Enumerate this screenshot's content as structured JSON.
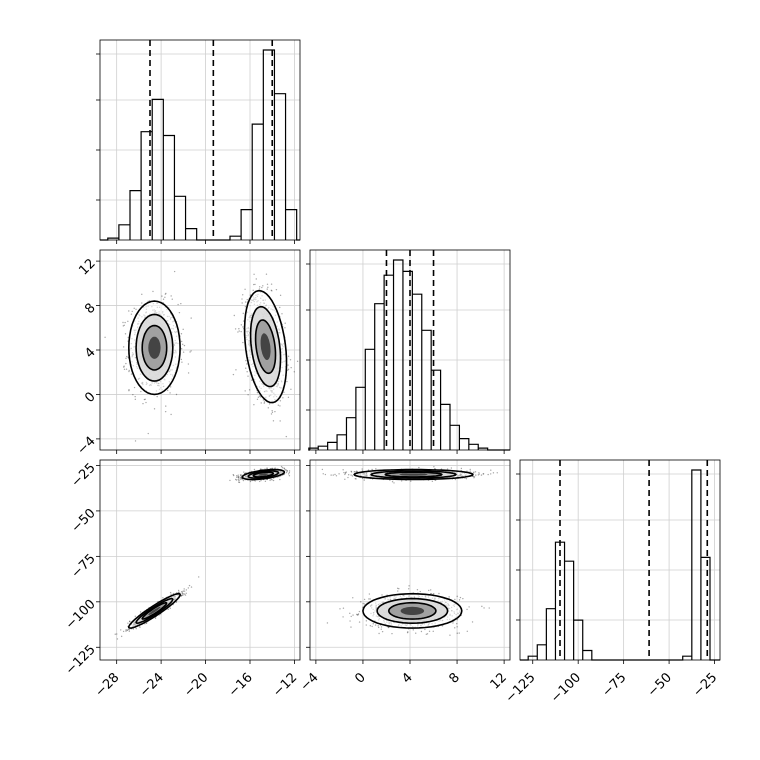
{
  "chart_data": [
    {
      "type": "histogram",
      "panel": "marginal-x",
      "xlim": [
        -29.5,
        -11.5
      ],
      "xticks": [
        -28,
        -24,
        -20,
        -16,
        -12
      ],
      "bins": [
        [
          -28.3,
          0.01
        ],
        [
          -27.3,
          0.08
        ],
        [
          -26.3,
          0.26
        ],
        [
          -25.3,
          0.57
        ],
        [
          -24.3,
          0.74
        ],
        [
          -23.3,
          0.55
        ],
        [
          -22.3,
          0.23
        ],
        [
          -21.3,
          0.06
        ],
        [
          -20.3,
          0.0
        ],
        [
          -19.3,
          0.0
        ],
        [
          -18.3,
          0.0
        ],
        [
          -17.3,
          0.02
        ],
        [
          -16.3,
          0.16
        ],
        [
          -15.3,
          0.61
        ],
        [
          -14.3,
          1.0
        ],
        [
          -13.3,
          0.77
        ],
        [
          -12.3,
          0.16
        ]
      ],
      "quantiles": [
        -25.0,
        -19.3,
        -14.0
      ]
    },
    {
      "type": "histogram",
      "panel": "marginal-y",
      "xlim": [
        -4.5,
        12.5
      ],
      "xticks": [
        -4,
        0,
        4,
        8,
        12
      ],
      "bins": [
        [
          -4.2,
          0.01
        ],
        [
          -3.4,
          0.02
        ],
        [
          -2.6,
          0.04
        ],
        [
          -1.8,
          0.08
        ],
        [
          -1.0,
          0.17
        ],
        [
          -0.2,
          0.33
        ],
        [
          0.6,
          0.53
        ],
        [
          1.4,
          0.77
        ],
        [
          2.2,
          0.92
        ],
        [
          3.0,
          1.0
        ],
        [
          3.8,
          0.94
        ],
        [
          4.6,
          0.82
        ],
        [
          5.4,
          0.63
        ],
        [
          6.2,
          0.42
        ],
        [
          7.0,
          0.24
        ],
        [
          7.8,
          0.13
        ],
        [
          8.6,
          0.06
        ],
        [
          9.4,
          0.03
        ],
        [
          10.2,
          0.01
        ]
      ],
      "quantiles": [
        2.0,
        4.0,
        6.0
      ]
    },
    {
      "type": "histogram",
      "panel": "marginal-z",
      "xlim": [
        -132,
        -22
      ],
      "xticks": [
        -125,
        -100,
        -75,
        -50,
        -25
      ],
      "bins": [
        [
          -125,
          0.02
        ],
        [
          -120,
          0.08
        ],
        [
          -115,
          0.27
        ],
        [
          -110,
          0.62
        ],
        [
          -105,
          0.52
        ],
        [
          -100,
          0.21
        ],
        [
          -95,
          0.05
        ],
        [
          -90,
          0.0
        ],
        [
          -85,
          0.0
        ],
        [
          -80,
          0.0
        ],
        [
          -75,
          0.0
        ],
        [
          -70,
          0.0
        ],
        [
          -65,
          0.0
        ],
        [
          -60,
          0.0
        ],
        [
          -55,
          0.0
        ],
        [
          -50,
          0.0
        ],
        [
          -45,
          0.0
        ],
        [
          -40,
          0.02
        ],
        [
          -35,
          1.0
        ],
        [
          -30,
          0.54
        ]
      ],
      "quantiles": [
        -110,
        -61,
        -29
      ]
    },
    {
      "type": "scatter-contour",
      "panel": "x-vs-y",
      "xlim": [
        -29.5,
        -11.5
      ],
      "ylim": [
        -5,
        13
      ],
      "xticks": [
        -28,
        -24,
        -20,
        -16,
        -12
      ],
      "yticks": [
        -4,
        0,
        4,
        8,
        12
      ],
      "clusters": [
        {
          "cx": -24.6,
          "cy": 4.2,
          "sx": 1.1,
          "sy": 2.0,
          "rho": 0.0
        },
        {
          "cx": -14.6,
          "cy": 4.3,
          "sx": 0.9,
          "sy": 2.4,
          "rho": -0.3
        }
      ]
    },
    {
      "type": "scatter-contour",
      "panel": "x-vs-z",
      "xlim": [
        -29.5,
        -11.5
      ],
      "ylim": [
        -132,
        -22
      ],
      "xticks": [
        -28,
        -24,
        -20,
        -16,
        -12
      ],
      "yticks": [
        -125,
        -100,
        -75,
        -50,
        -25
      ],
      "clusters": [
        {
          "cx": -24.6,
          "cy": -105,
          "sx": 1.1,
          "sy": 4.5,
          "rho": 0.94
        },
        {
          "cx": -14.8,
          "cy": -30,
          "sx": 0.9,
          "sy": 1.3,
          "rho": 0.5
        }
      ]
    },
    {
      "type": "scatter-contour",
      "panel": "y-vs-z",
      "xlim": [
        -4.5,
        12.5
      ],
      "ylim": [
        -132,
        -22
      ],
      "xticks": [
        -4,
        0,
        4,
        8,
        12
      ],
      "yticks": [
        -125,
        -100,
        -75,
        -50,
        -25
      ],
      "clusters": [
        {
          "cx": 4.2,
          "cy": -105,
          "sx": 2.0,
          "sy": 4.5,
          "rho": 0.0
        },
        {
          "cx": 4.3,
          "cy": -30,
          "sx": 2.4,
          "sy": 1.3,
          "rho": 0.0
        }
      ]
    }
  ]
}
